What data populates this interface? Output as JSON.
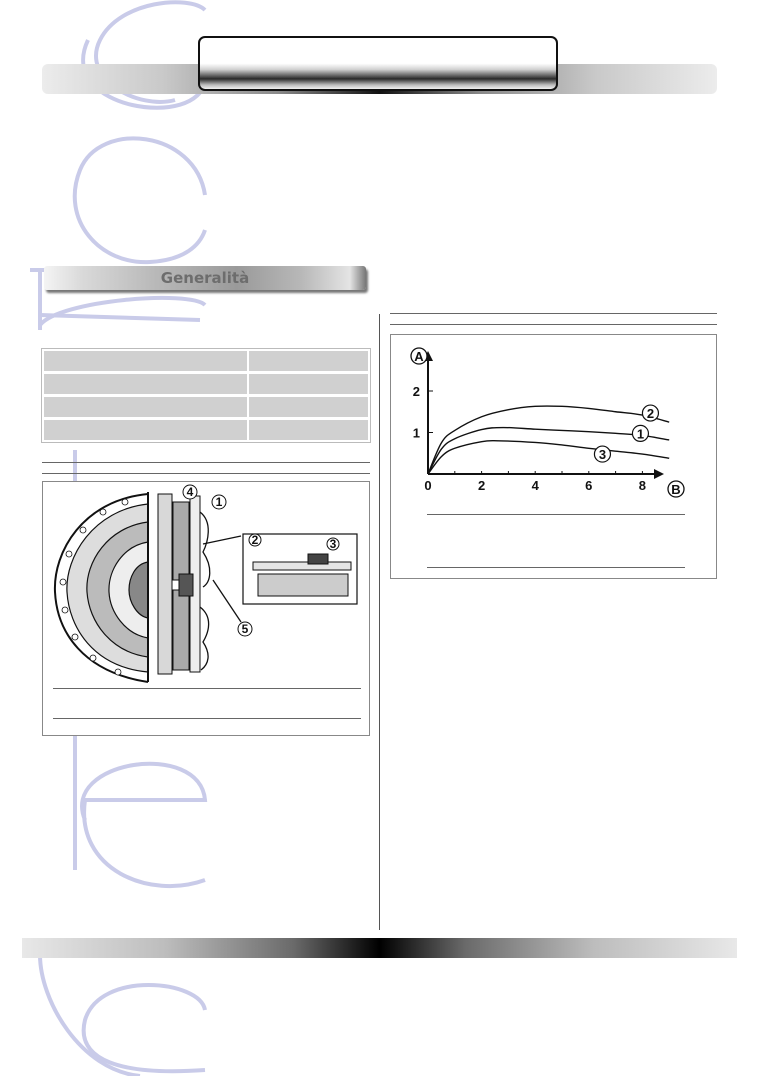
{
  "section": {
    "title": "Generalità"
  },
  "chart_data": {
    "type": "line",
    "axis_badges": {
      "y": "A",
      "x": "B"
    },
    "x_ticks": [
      "0",
      "2",
      "4",
      "6",
      "8"
    ],
    "y_ticks": [
      "1",
      "2"
    ],
    "xlim": [
      0,
      9
    ],
    "ylim": [
      0,
      2.8
    ],
    "series": [
      {
        "name": "2",
        "x": [
          0,
          0.5,
          1,
          2,
          3,
          4,
          5,
          6,
          7,
          8,
          9
        ],
        "values": [
          0,
          0.75,
          1.05,
          1.38,
          1.55,
          1.63,
          1.63,
          1.58,
          1.5,
          1.42,
          1.25
        ]
      },
      {
        "name": "1",
        "x": [
          0,
          0.5,
          1,
          2,
          2.8,
          4,
          5,
          6,
          7,
          8,
          9
        ],
        "values": [
          0,
          0.6,
          0.85,
          1.07,
          1.12,
          1.08,
          1.05,
          1.02,
          0.98,
          0.93,
          0.82
        ]
      },
      {
        "name": "3",
        "x": [
          0,
          0.5,
          1,
          2,
          2.6,
          4,
          5,
          6,
          7,
          8,
          9
        ],
        "values": [
          0,
          0.42,
          0.62,
          0.78,
          0.8,
          0.76,
          0.7,
          0.62,
          0.55,
          0.48,
          0.38
        ]
      }
    ]
  },
  "clutch_diagram": {
    "callouts": [
      "1",
      "2",
      "3",
      "4",
      "5"
    ]
  }
}
